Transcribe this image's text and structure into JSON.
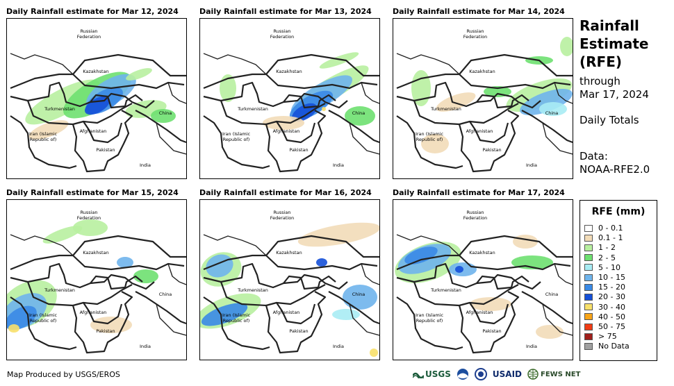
{
  "panels": [
    {
      "title": "Daily Rainfall estimate for Mar 12, 2024"
    },
    {
      "title": "Daily Rainfall estimate for Mar 13, 2024"
    },
    {
      "title": "Daily Rainfall estimate for Mar 14, 2024"
    },
    {
      "title": "Daily Rainfall estimate for Mar 15, 2024"
    },
    {
      "title": "Daily Rainfall estimate for Mar 16, 2024"
    },
    {
      "title": "Daily Rainfall estimate for Mar 17, 2024"
    }
  ],
  "map_labels": {
    "russia_1": "Russian",
    "russia_2": "Federation",
    "kazakhstan": "Kazakhstan",
    "turkmenistan": "Turkmenistan",
    "china": "China",
    "iran_1": "Iran  (Islamic",
    "iran_2": "Republic of)",
    "afghanistan": "Afghanistan",
    "pakistan": "Pakistan",
    "india": "India"
  },
  "side": {
    "title_1": "Rainfall",
    "title_2": "Estimate",
    "title_3": "(RFE)",
    "through": "through",
    "date": "Mar 17, 2024",
    "totals": "Daily Totals",
    "data_label": "Data:",
    "data_source": "NOAA-RFE2.0"
  },
  "legend": {
    "title": "RFE (mm)",
    "items": [
      {
        "label": "0 - 0.1",
        "color": "#ffffff"
      },
      {
        "label": "0.1 - 1",
        "color": "#f2dcb8"
      },
      {
        "label": "1 - 2",
        "color": "#b8f0a0"
      },
      {
        "label": "2 - 5",
        "color": "#6ee070"
      },
      {
        "label": "5 - 10",
        "color": "#a8ecf4"
      },
      {
        "label": "10 - 15",
        "color": "#6fb4ec"
      },
      {
        "label": "15 - 20",
        "color": "#3a8ae6"
      },
      {
        "label": "20 - 30",
        "color": "#1550d8"
      },
      {
        "label": "30 - 40",
        "color": "#f8e06a"
      },
      {
        "label": "40 - 50",
        "color": "#f8a418"
      },
      {
        "label": "50 - 75",
        "color": "#f03c14"
      },
      {
        "label": "> 75",
        "color": "#a0201c"
      },
      {
        "label": "No Data",
        "color": "#a0a0a0"
      }
    ]
  },
  "credit": "Map Produced by USGS/EROS",
  "logos": {
    "usgs": "USGS",
    "usaid": "USAID",
    "fewsnet": "FEWS NET"
  }
}
